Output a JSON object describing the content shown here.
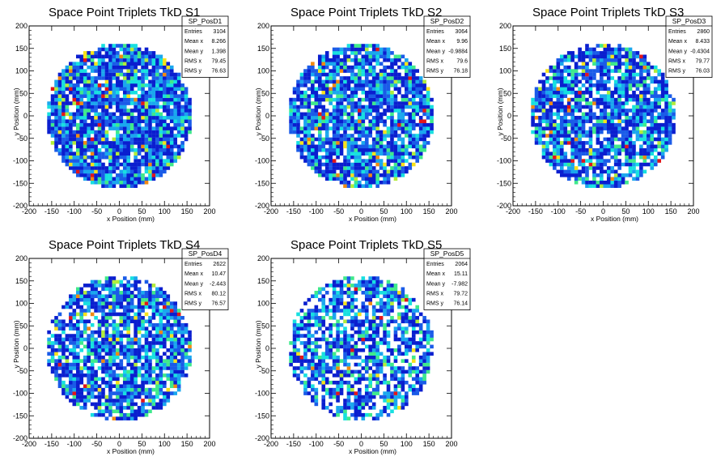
{
  "chart_data": [
    {
      "type": "heatmap",
      "title": "Space Point Triplets TkD S1",
      "xlabel": "x Position (mm)",
      "ylabel": "y Position (mm)",
      "xlim": [
        -200,
        200
      ],
      "ylim": [
        -200,
        200
      ],
      "xticks": [
        -200,
        -150,
        -100,
        -50,
        0,
        50,
        100,
        150,
        200
      ],
      "yticks": [
        -200,
        -150,
        -100,
        -50,
        0,
        50,
        100,
        150,
        200
      ],
      "stats": {
        "name": "SP_PosD1",
        "rows": [
          [
            "Entries",
            "3104"
          ],
          [
            "Mean x",
            "8.266"
          ],
          [
            "Mean y",
            "1.398"
          ],
          [
            "RMS x",
            "79.45"
          ],
          [
            "RMS y",
            "76.63"
          ]
        ]
      },
      "colors": [
        "#0a1ecf",
        "#1a5be8",
        "#1aa7ee",
        "#17e0e0",
        "#3fe98c",
        "#b2ec3a",
        "#f7e21a",
        "#f08a12",
        "#e2161a"
      ]
    },
    {
      "type": "heatmap",
      "title": "Space Point Triplets TkD S2",
      "xlabel": "x Position (mm)",
      "ylabel": "y Position (mm)",
      "xlim": [
        -200,
        200
      ],
      "ylim": [
        -200,
        200
      ],
      "xticks": [
        -200,
        -150,
        -100,
        -50,
        0,
        50,
        100,
        150,
        200
      ],
      "yticks": [
        -200,
        -150,
        -100,
        -50,
        0,
        50,
        100,
        150,
        200
      ],
      "stats": {
        "name": "SP_PosD2",
        "rows": [
          [
            "Entries",
            "3064"
          ],
          [
            "Mean x",
            "9.96"
          ],
          [
            "Mean y",
            "-0.9884"
          ],
          [
            "RMS x",
            "79.6"
          ],
          [
            "RMS y",
            "76.18"
          ]
        ]
      },
      "colors": [
        "#0a1ecf",
        "#1a5be8",
        "#1aa7ee",
        "#17e0e0",
        "#3fe98c",
        "#b2ec3a",
        "#f7e21a",
        "#f08a12",
        "#e2161a"
      ]
    },
    {
      "type": "heatmap",
      "title": "Space Point Triplets TkD S3",
      "xlabel": "x Position (mm)",
      "ylabel": "y Position (mm)",
      "xlim": [
        -200,
        200
      ],
      "ylim": [
        -200,
        200
      ],
      "xticks": [
        -200,
        -150,
        -100,
        -50,
        0,
        50,
        100,
        150,
        200
      ],
      "yticks": [
        -200,
        -150,
        -100,
        -50,
        0,
        50,
        100,
        150,
        200
      ],
      "stats": {
        "name": "SP_PosD3",
        "rows": [
          [
            "Entries",
            "2860"
          ],
          [
            "Mean x",
            "8.433"
          ],
          [
            "Mean y",
            "-0.4304"
          ],
          [
            "RMS x",
            "79.77"
          ],
          [
            "RMS y",
            "76.03"
          ]
        ]
      },
      "colors": [
        "#0a1ecf",
        "#1a5be8",
        "#1aa7ee",
        "#17e0e0",
        "#3fe98c",
        "#b2ec3a",
        "#f7e21a",
        "#f08a12",
        "#e2161a"
      ]
    },
    {
      "type": "heatmap",
      "title": "Space Point Triplets TkD S4",
      "xlabel": "x Position (mm)",
      "ylabel": "y Position (mm)",
      "xlim": [
        -200,
        200
      ],
      "ylim": [
        -200,
        200
      ],
      "xticks": [
        -200,
        -150,
        -100,
        -50,
        0,
        50,
        100,
        150,
        200
      ],
      "yticks": [
        -200,
        -150,
        -100,
        -50,
        0,
        50,
        100,
        150,
        200
      ],
      "stats": {
        "name": "SP_PosD4",
        "rows": [
          [
            "Entries",
            "2622"
          ],
          [
            "Mean x",
            "10.47"
          ],
          [
            "Mean y",
            "-2.443"
          ],
          [
            "RMS x",
            "80.12"
          ],
          [
            "RMS y",
            "76.57"
          ]
        ]
      },
      "colors": [
        "#0a1ecf",
        "#1a5be8",
        "#1aa7ee",
        "#17e0e0",
        "#3fe98c",
        "#b2ec3a",
        "#f7e21a",
        "#f08a12",
        "#e2161a"
      ]
    },
    {
      "type": "heatmap",
      "title": "Space Point Triplets TkD S5",
      "xlabel": "x Position (mm)",
      "ylabel": "y Position (mm)",
      "xlim": [
        -200,
        200
      ],
      "ylim": [
        -200,
        200
      ],
      "xticks": [
        -200,
        -150,
        -100,
        -50,
        0,
        50,
        100,
        150,
        200
      ],
      "yticks": [
        -200,
        -150,
        -100,
        -50,
        0,
        50,
        100,
        150,
        200
      ],
      "stats": {
        "name": "SP_PosD5",
        "rows": [
          [
            "Entries",
            "2064"
          ],
          [
            "Mean x",
            "15.11"
          ],
          [
            "Mean y",
            "-7.982"
          ],
          [
            "RMS x",
            "79.72"
          ],
          [
            "RMS y",
            "76.14"
          ]
        ]
      },
      "colors": [
        "#0a1ecf",
        "#1a5be8",
        "#1aa7ee",
        "#17e0e0",
        "#3fe98c",
        "#b2ec3a",
        "#f7e21a",
        "#f08a12",
        "#e2161a"
      ]
    }
  ]
}
